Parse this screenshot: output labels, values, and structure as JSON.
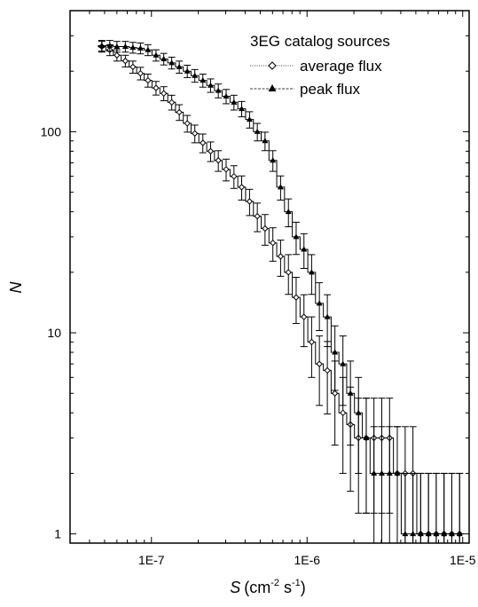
{
  "chart_data": {
    "type": "line",
    "step": true,
    "x_scale": "log",
    "y_scale": "log",
    "xlim": [
      3e-08,
      1.1e-05
    ],
    "ylim": [
      0.9,
      400
    ],
    "x_ticks": [
      {
        "value": 1e-07,
        "label": "1E-7"
      },
      {
        "value": 1e-06,
        "label": "1E-6"
      },
      {
        "value": 1e-05,
        "label": "1E-5"
      }
    ],
    "y_ticks": [
      {
        "value": 1,
        "label": "1"
      },
      {
        "value": 10,
        "label": "10"
      },
      {
        "value": 100,
        "label": "100"
      }
    ],
    "xlabel_symbol": "S",
    "xlabel_units": "(cm",
    "xlabel_exp1": "-2",
    "xlabel_mid": " s",
    "xlabel_exp2": "-1",
    "xlabel_end": ")",
    "ylabel": "N",
    "legend": {
      "title": "3EG catalog sources",
      "position": "top-right"
    },
    "series": [
      {
        "name": "average flux",
        "marker": "diamond",
        "line_style": "dotted",
        "x": [
          4.8e-08,
          5.4e-08,
          6e-08,
          6.8e-08,
          7.6e-08,
          8.5e-08,
          9.5e-08,
          1.07e-07,
          1.2e-07,
          1.35e-07,
          1.51e-07,
          1.7e-07,
          1.9e-07,
          2.14e-07,
          2.4e-07,
          2.69e-07,
          3.02e-07,
          3.39e-07,
          3.8e-07,
          4.27e-07,
          4.79e-07,
          5.37e-07,
          6.03e-07,
          6.76e-07,
          7.59e-07,
          8.51e-07,
          9.55e-07,
          1.07e-06,
          1.2e-06,
          1.35e-06,
          1.51e-06,
          1.7e-06,
          1.9e-06,
          2.14e-06,
          2.4e-06,
          2.69e-06,
          3.02e-06,
          3.39e-06,
          3.8e-06,
          4.27e-06,
          4.79e-06,
          5.37e-06,
          6.03e-06,
          6.76e-06,
          7.59e-06,
          8.51e-06,
          9.55e-06
        ],
        "y": [
          265,
          255,
          240,
          225,
          210,
          195,
          180,
          165,
          155,
          140,
          125,
          110,
          98,
          88,
          80,
          72,
          65,
          60,
          53,
          45,
          38,
          33,
          28,
          24,
          20,
          15,
          12,
          9,
          7,
          6.5,
          5,
          4,
          3.5,
          3,
          3,
          3,
          3,
          3,
          2,
          2,
          2,
          1,
          1,
          1,
          1,
          1,
          1
        ]
      },
      {
        "name": "peak flux",
        "marker": "triangle",
        "line_style": "dashed",
        "x": [
          4.8e-08,
          5.4e-08,
          6e-08,
          6.8e-08,
          7.6e-08,
          8.5e-08,
          9.5e-08,
          1.07e-07,
          1.2e-07,
          1.35e-07,
          1.51e-07,
          1.7e-07,
          1.9e-07,
          2.14e-07,
          2.4e-07,
          2.69e-07,
          3.02e-07,
          3.39e-07,
          3.8e-07,
          4.27e-07,
          4.79e-07,
          5.37e-07,
          6.03e-07,
          6.76e-07,
          7.59e-07,
          8.51e-07,
          9.55e-07,
          1.07e-06,
          1.2e-06,
          1.35e-06,
          1.51e-06,
          1.7e-06,
          1.9e-06,
          2.14e-06,
          2.4e-06,
          2.69e-06,
          3.02e-06,
          3.39e-06,
          3.8e-06,
          4.27e-06,
          4.79e-06,
          5.37e-06,
          6.03e-06,
          6.76e-06,
          7.59e-06,
          8.51e-06,
          9.55e-06
        ],
        "y": [
          268,
          268,
          265,
          265,
          262,
          260,
          255,
          240,
          230,
          220,
          210,
          200,
          190,
          180,
          170,
          160,
          150,
          140,
          130,
          115,
          100,
          90,
          72,
          53,
          40,
          30,
          26,
          20,
          14,
          12,
          8,
          7,
          5,
          4,
          3,
          2,
          2,
          2,
          2,
          1,
          1,
          1,
          1,
          1,
          1,
          1,
          1
        ]
      }
    ]
  }
}
